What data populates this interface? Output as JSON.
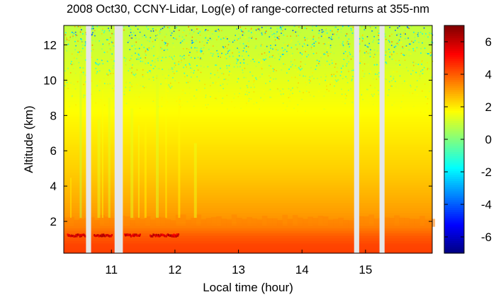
{
  "chart_data": {
    "type": "heatmap",
    "title": "2008 Oct30, CCNY-Lidar, Log(e) of range-corrected returns at 355-nm",
    "xlabel": "Local time (hour)",
    "ylabel": "Altitude (km)",
    "xlim": [
      10.25,
      16.05
    ],
    "ylim": [
      0.2,
      13.1
    ],
    "xticks": [
      11,
      12,
      13,
      14,
      15
    ],
    "xtick_labels": [
      "11",
      "12",
      "13",
      "14",
      "15"
    ],
    "yticks": [
      2,
      4,
      6,
      8,
      10,
      12
    ],
    "ytick_labels": [
      "2",
      "4",
      "6",
      "8",
      "10",
      "12"
    ],
    "colorbar": {
      "colormap": "jet",
      "range": [
        -7,
        7
      ],
      "ticks": [
        6,
        4,
        2,
        0,
        -2,
        -4,
        -6
      ],
      "tick_labels": [
        "6",
        "4",
        "2",
        "0",
        "-2",
        "-4",
        "-6"
      ]
    },
    "data_gaps_hours": [
      [
        10.6,
        10.68
      ],
      [
        11.05,
        11.18
      ],
      [
        14.82,
        14.9
      ],
      [
        15.22,
        15.3
      ]
    ],
    "profile": {
      "altitude_km": [
        0.2,
        0.7,
        1.2,
        1.6,
        2.0,
        2.5,
        3.5,
        5.0,
        7.0,
        9.0,
        11.0,
        13.1
      ],
      "value": [
        4.4,
        4.3,
        4.0,
        3.6,
        3.3,
        3.1,
        2.8,
        2.4,
        2.0,
        1.6,
        1.2,
        0.9
      ]
    },
    "cloud_layer": {
      "altitude_km": 1.2,
      "value": 6.5,
      "segments_hours": [
        [
          10.3,
          10.6
        ],
        [
          10.72,
          11.0
        ],
        [
          11.2,
          11.45
        ],
        [
          11.6,
          12.05
        ]
      ]
    },
    "near_surface_layer_top_km": 2.2,
    "noise_onset_altitude_km": 8.0
  }
}
